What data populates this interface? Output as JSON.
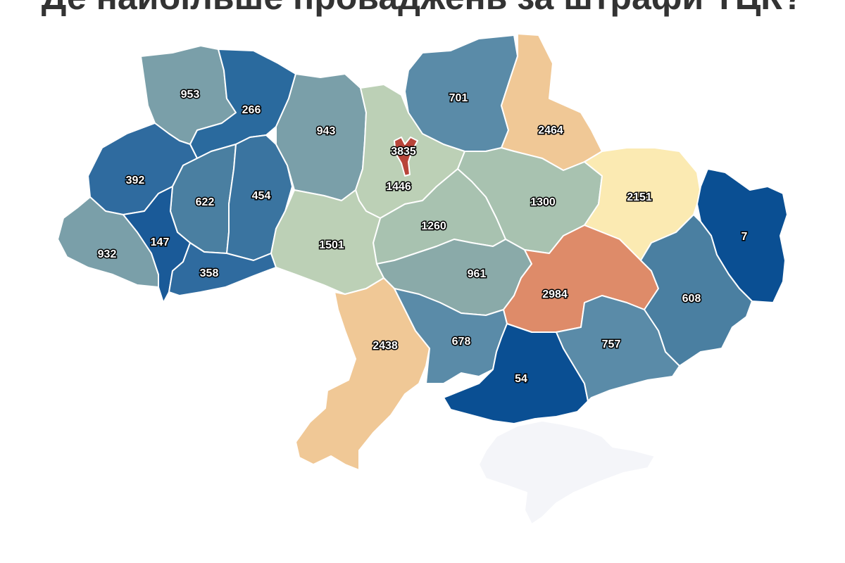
{
  "title": "Де найбільше проваджень за штрафи ТЦК?",
  "colors": {
    "deep_blue": "#0a4f93",
    "blue": "#2a6a9e",
    "steel_blue": "#4a7fa1",
    "slate_blue": "#5a8ba8",
    "gray_blue": "#7a9fa9",
    "sage": "#a8c2b0",
    "light_sage": "#bcd0b6",
    "pale_yellow": "#fbeab2",
    "peach": "#f0c896",
    "salmon": "#de8b69",
    "red": "#b8453a",
    "no_data": "#f4f5f9"
  },
  "regions": [
    {
      "id": "volyn",
      "value": "953",
      "color": "#7a9fa9"
    },
    {
      "id": "rivne",
      "value": "266",
      "color": "#2a6a9e"
    },
    {
      "id": "lviv",
      "value": "392",
      "color": "#2f6b9f"
    },
    {
      "id": "ternopil",
      "value": "622",
      "color": "#4a7fa1"
    },
    {
      "id": "khmelnytskyi",
      "value": "454",
      "color": "#3a74a0"
    },
    {
      "id": "zakarpattia",
      "value": "932",
      "color": "#7a9fa9"
    },
    {
      "id": "ivano-frankivsk",
      "value": "147",
      "color": "#1a5a98"
    },
    {
      "id": "chernivtsi",
      "value": "358",
      "color": "#2f6b9f"
    },
    {
      "id": "zhytomyr",
      "value": "943",
      "color": "#7a9fa9"
    },
    {
      "id": "kyiv-oblast",
      "value": "1446",
      "color": "#bcd0b6"
    },
    {
      "id": "kyiv-city",
      "value": "3835",
      "color": "#b8453a"
    },
    {
      "id": "chernihiv",
      "value": "701",
      "color": "#5a8ba8"
    },
    {
      "id": "sumy",
      "value": "2464",
      "color": "#f0c896"
    },
    {
      "id": "poltava",
      "value": "1300",
      "color": "#a8c2b0"
    },
    {
      "id": "kharkiv",
      "value": "2151",
      "color": "#fbeab2"
    },
    {
      "id": "luhansk",
      "value": "7",
      "color": "#0a4f93"
    },
    {
      "id": "cherkasy",
      "value": "1260",
      "color": "#a8c2b0"
    },
    {
      "id": "vinnytsia",
      "value": "1501",
      "color": "#bcd0b6"
    },
    {
      "id": "kirovohrad",
      "value": "961",
      "color": "#8aaaa9"
    },
    {
      "id": "dnipropetrovsk",
      "value": "2984",
      "color": "#de8b69"
    },
    {
      "id": "donetsk",
      "value": "608",
      "color": "#4a7fa1"
    },
    {
      "id": "odesa",
      "value": "2438",
      "color": "#f0c896"
    },
    {
      "id": "mykolaiv",
      "value": "678",
      "color": "#5a8ba8"
    },
    {
      "id": "kherson",
      "value": "54",
      "color": "#0a4f93"
    },
    {
      "id": "zaporizhzhia",
      "value": "757",
      "color": "#5a8ba8"
    },
    {
      "id": "crimea",
      "value": "",
      "color": "#f4f5f9"
    }
  ]
}
